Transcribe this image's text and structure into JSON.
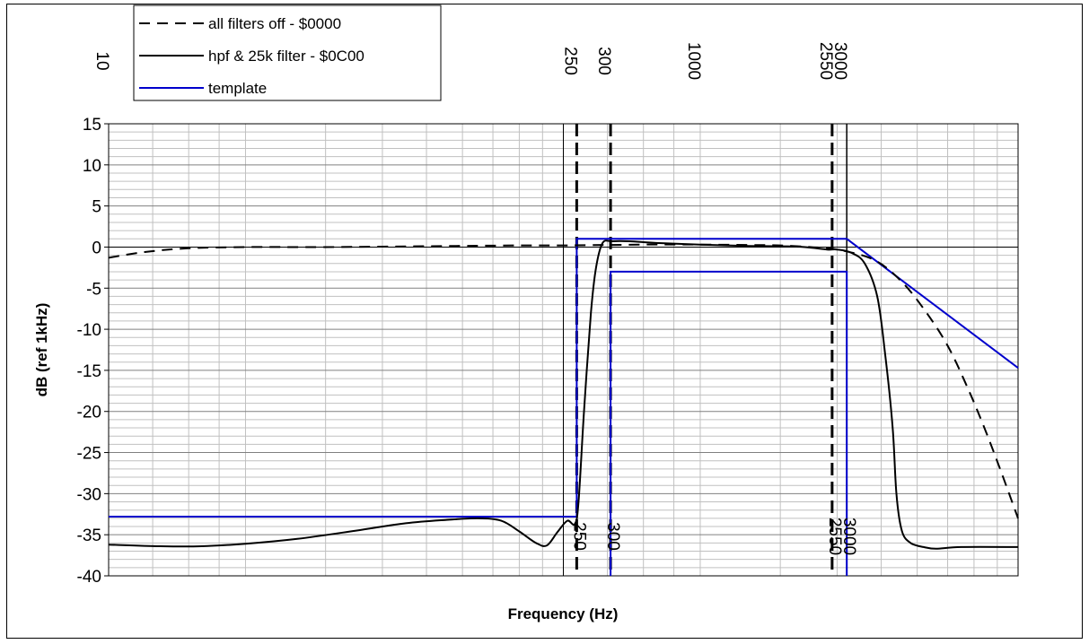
{
  "chart_data": {
    "type": "line",
    "title": "",
    "xlabel": "Frequency (Hz)",
    "ylabel": "dB (ref 1kHz)",
    "x_scale": "log",
    "xlim": [
      100,
      10000
    ],
    "ylim": [
      -40,
      15
    ],
    "y_ticks": [
      "15",
      "10",
      "5",
      "0",
      "-5",
      "-10",
      "-15",
      "-20",
      "-25",
      "-30",
      "-35",
      "-40"
    ],
    "grid": true,
    "legend_position": "top-left",
    "series": [
      {
        "name": "all filters off - $0000",
        "color": "#000000",
        "style": "dashed",
        "points": [
          [
            100,
            -1.3
          ],
          [
            120,
            -0.6
          ],
          [
            150,
            -0.15
          ],
          [
            200,
            0
          ],
          [
            300,
            0
          ],
          [
            500,
            0.1
          ],
          [
            800,
            0.2
          ],
          [
            1000,
            0.2
          ],
          [
            1500,
            0.3
          ],
          [
            2000,
            0.3
          ],
          [
            2600,
            0.25
          ],
          [
            3000,
            0.2
          ],
          [
            3500,
            0
          ],
          [
            4000,
            -0.3
          ],
          [
            4800,
            -1.5
          ],
          [
            5500,
            -4
          ],
          [
            6200,
            -7.5
          ],
          [
            7000,
            -12
          ],
          [
            7800,
            -17.5
          ],
          [
            8500,
            -22.5
          ],
          [
            9200,
            -27.5
          ],
          [
            10000,
            -33
          ]
        ]
      },
      {
        "name": "hpf & 25k filter - $0C00",
        "color": "#000000",
        "style": "solid",
        "points": [
          [
            100,
            -36.2
          ],
          [
            130,
            -36.4
          ],
          [
            160,
            -36.4
          ],
          [
            200,
            -36.1
          ],
          [
            260,
            -35.5
          ],
          [
            350,
            -34.5
          ],
          [
            450,
            -33.6
          ],
          [
            550,
            -33.2
          ],
          [
            650,
            -33
          ],
          [
            730,
            -33.3
          ],
          [
            800,
            -34.6
          ],
          [
            870,
            -36
          ],
          [
            920,
            -36.3
          ],
          [
            970,
            -34.7
          ],
          [
            1020,
            -33.3
          ],
          [
            1060,
            -33.7
          ],
          [
            1080,
            -31
          ],
          [
            1110,
            -20
          ],
          [
            1150,
            -8
          ],
          [
            1180,
            -2.5
          ],
          [
            1220,
            0.5
          ],
          [
            1280,
            0.7
          ],
          [
            1400,
            0.7
          ],
          [
            1600,
            0.5
          ],
          [
            2000,
            0.3
          ],
          [
            2500,
            0.15
          ],
          [
            3000,
            0.1
          ],
          [
            3400,
            0
          ],
          [
            3800,
            -0.3
          ],
          [
            4000,
            -0.3
          ],
          [
            4300,
            -0.7
          ],
          [
            4600,
            -2
          ],
          [
            4900,
            -6
          ],
          [
            5100,
            -13
          ],
          [
            5300,
            -22
          ],
          [
            5400,
            -30
          ],
          [
            5550,
            -34.5
          ],
          [
            5800,
            -36
          ],
          [
            6200,
            -36.5
          ],
          [
            6600,
            -36.7
          ],
          [
            7500,
            -36.5
          ],
          [
            10000,
            -36.5
          ]
        ]
      },
      {
        "name": "template",
        "color": "#0000cc",
        "style": "solid",
        "points_upper": [
          [
            100,
            -32.8
          ],
          [
            1070,
            -32.8
          ],
          [
            1070,
            1.0
          ],
          [
            4200,
            1.0
          ],
          [
            10000,
            -14.7
          ]
        ],
        "points_lower": [
          [
            1270,
            -40
          ],
          [
            1270,
            -3.0
          ],
          [
            4200,
            -3.0
          ],
          [
            4200,
            -40
          ]
        ]
      }
    ],
    "reference_lines": [
      {
        "x": 1070,
        "label": "250",
        "style": "dashed"
      },
      {
        "x": 1270,
        "label": "300",
        "style": "dashed"
      },
      {
        "x": 3900,
        "label": "2550",
        "style": "dashed"
      },
      {
        "x": 4200,
        "label": "3000",
        "style": "solid"
      }
    ],
    "top_labels": [
      {
        "x": 100,
        "label": "10"
      },
      {
        "x": 1070,
        "label": "250"
      },
      {
        "x": 1270,
        "label": "300"
      },
      {
        "x": 2000,
        "label": "1000"
      },
      {
        "x": 3900,
        "label": "2550"
      },
      {
        "x": 4200,
        "label": "3000"
      }
    ],
    "bottom_labels": [
      {
        "x": 1070,
        "label": "250"
      },
      {
        "x": 1270,
        "label": "300"
      },
      {
        "x": 3900,
        "label": "2550"
      },
      {
        "x": 4200,
        "label": "3000"
      }
    ]
  }
}
